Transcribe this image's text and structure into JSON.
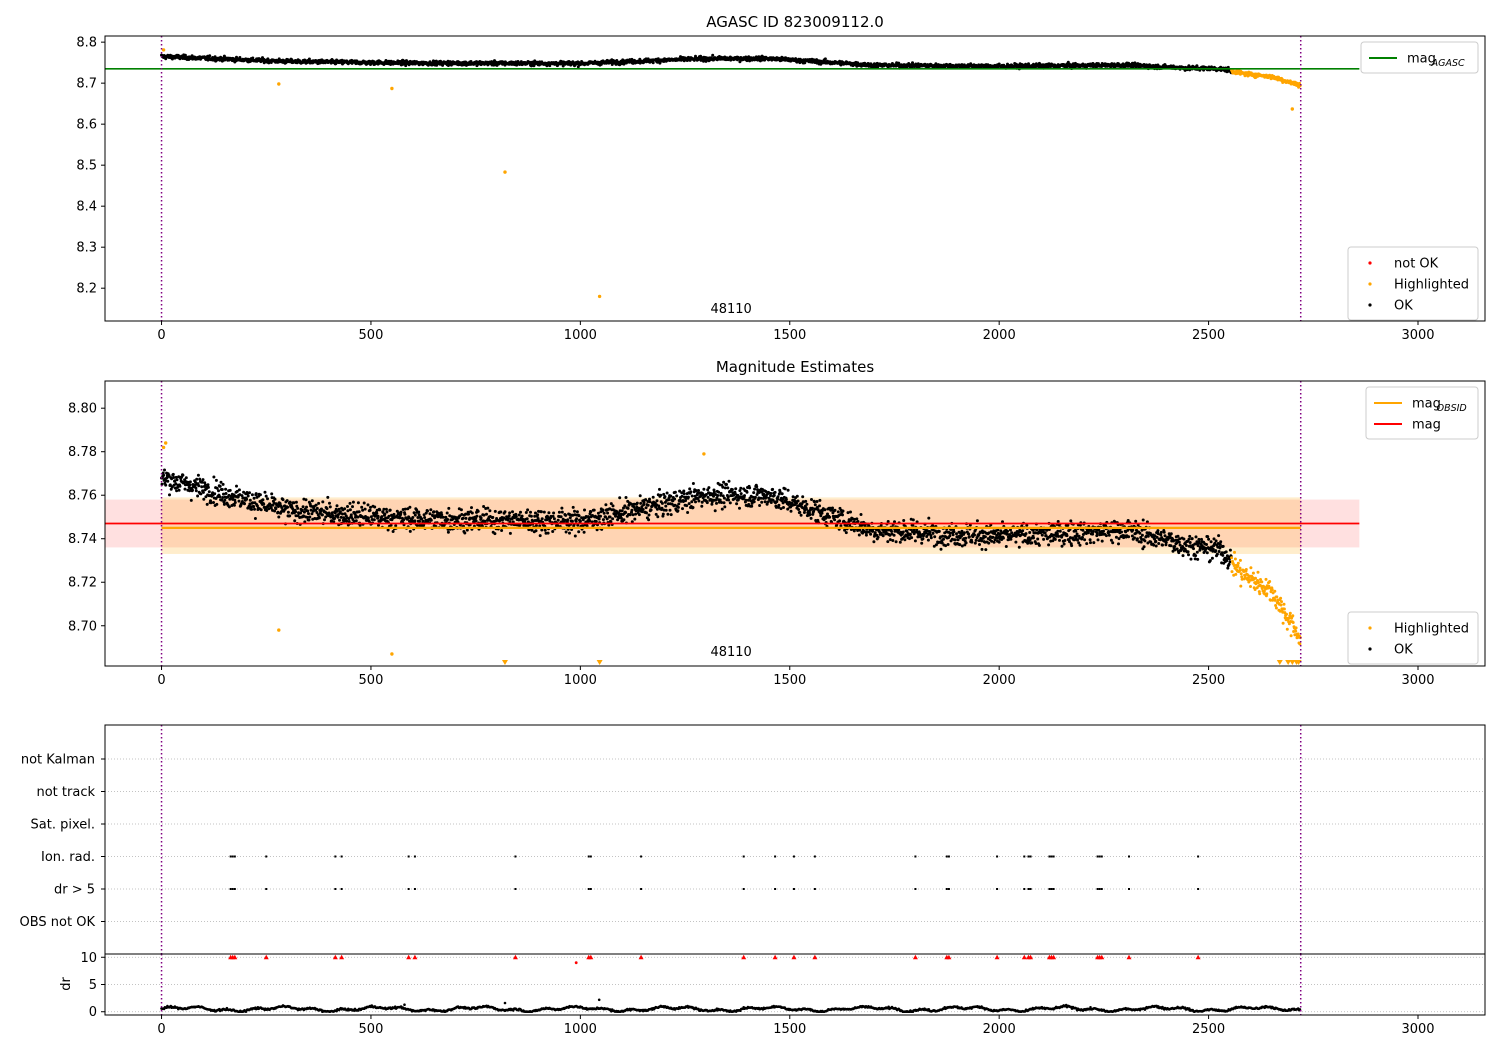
{
  "chart_data": [
    {
      "type": "scatter",
      "title": "AGASC ID 823009112.0",
      "xlim": [
        -135,
        3160
      ],
      "ylim": [
        8.12,
        8.815
      ],
      "xticks": [
        0,
        500,
        1000,
        1500,
        2000,
        2500,
        3000
      ],
      "yticks": [
        8.2,
        8.3,
        8.4,
        8.5,
        8.6,
        8.7,
        8.8
      ],
      "grid": false,
      "vlines": [
        0,
        2720
      ],
      "annotation": {
        "text": "48110",
        "x": 1360,
        "y": 8.14
      },
      "hline": {
        "name": "mag",
        "subscript": "AGASC",
        "y": 8.735,
        "x0": -135,
        "x1": 2860,
        "color": "#008000"
      },
      "series_meta": {
        "ok": {
          "name": "OK",
          "color": "#000000"
        },
        "highlighted": {
          "name": "Highlighted",
          "color": "#ffa500"
        },
        "not_ok": {
          "name": "not OK",
          "color": "#ff0000"
        }
      },
      "trend": {
        "n": 2720,
        "knots": [
          [
            0,
            8.765
          ],
          [
            300,
            8.753
          ],
          [
            600,
            8.749
          ],
          [
            1000,
            8.748
          ],
          [
            1300,
            8.76
          ],
          [
            1450,
            8.76
          ],
          [
            1700,
            8.744
          ],
          [
            2000,
            8.741
          ],
          [
            2300,
            8.744
          ],
          [
            2450,
            8.737
          ],
          [
            2530,
            8.735
          ],
          [
            2580,
            8.724
          ],
          [
            2650,
            8.716
          ],
          [
            2720,
            8.694
          ]
        ],
        "scatter": 0.0065,
        "highlight_from": 2555
      },
      "outliers": [
        [
          5,
          8.781
        ],
        [
          280,
          8.698
        ],
        [
          550,
          8.687
        ],
        [
          820,
          8.483
        ],
        [
          1046,
          8.18
        ],
        [
          2700,
          8.637
        ]
      ],
      "legends": [
        {
          "position": "upper right",
          "entries": [
            {
              "label": "mag",
              "subscript": "AGASC",
              "kind": "line",
              "color": "#008000"
            }
          ]
        },
        {
          "position": "lower right",
          "entries": [
            {
              "label": "not OK",
              "kind": "marker",
              "color": "#ff0000"
            },
            {
              "label": "Highlighted",
              "kind": "marker",
              "color": "#ffa500"
            },
            {
              "label": "OK",
              "kind": "marker",
              "color": "#000000"
            }
          ]
        }
      ]
    },
    {
      "type": "scatter",
      "title": "Magnitude Estimates",
      "xlim": [
        -135,
        3160
      ],
      "ylim": [
        8.6815,
        8.8125
      ],
      "xticks": [
        0,
        500,
        1000,
        1500,
        2000,
        2500,
        3000
      ],
      "yticks": [
        8.7,
        8.72,
        8.74,
        8.76,
        8.78,
        8.8
      ],
      "ytick_labels": [
        "8.70",
        "8.72",
        "8.74",
        "8.76",
        "8.78",
        "8.80"
      ],
      "grid": false,
      "vlines": [
        0,
        2720
      ],
      "annotation": {
        "text": "48110",
        "x": 1360,
        "y": 8.686
      },
      "mag_band": {
        "y": 8.747,
        "lo": 8.736,
        "hi": 8.758,
        "x0": -135,
        "x1": 2860,
        "color": "#ff0000"
      },
      "obsid_band": {
        "y": 8.745,
        "lo": 8.733,
        "hi": 8.759,
        "x0": 0,
        "x1": 2720,
        "color": "#ffa500"
      },
      "trend": {
        "n": 2720,
        "knots": [
          [
            0,
            8.768
          ],
          [
            300,
            8.753
          ],
          [
            600,
            8.749
          ],
          [
            1000,
            8.748
          ],
          [
            1300,
            8.76
          ],
          [
            1450,
            8.76
          ],
          [
            1700,
            8.744
          ],
          [
            2000,
            8.741
          ],
          [
            2300,
            8.744
          ],
          [
            2450,
            8.737
          ],
          [
            2530,
            8.735
          ],
          [
            2580,
            8.724
          ],
          [
            2650,
            8.716
          ],
          [
            2720,
            8.694
          ]
        ],
        "scatter": 0.0068,
        "highlight_from": 2555
      },
      "outliers": [
        [
          5,
          8.782
        ],
        [
          10,
          8.784
        ],
        [
          280,
          8.698
        ],
        [
          550,
          8.687
        ],
        [
          1295,
          8.779
        ]
      ],
      "clipped_low": [
        820,
        1046,
        2670,
        2690,
        2700,
        2710,
        2715
      ],
      "legends": [
        {
          "position": "upper right",
          "entries": [
            {
              "label": "mag",
              "subscript": "OBSID",
              "kind": "line",
              "color": "#ffa500"
            },
            {
              "label": "mag",
              "kind": "line",
              "color": "#ff0000"
            }
          ]
        },
        {
          "position": "lower right",
          "entries": [
            {
              "label": "Highlighted",
              "kind": "marker",
              "color": "#ffa500"
            },
            {
              "label": "OK",
              "kind": "marker",
              "color": "#000000"
            }
          ]
        }
      ]
    },
    {
      "type": "scatter",
      "title": "",
      "xlim": [
        -135,
        3160
      ],
      "categories": [
        "not Kalman",
        "not track",
        "Sat. pixel.",
        "Ion. rad.",
        "dr > 5",
        "OBS not OK"
      ],
      "grid": true,
      "vlines": [
        0,
        2720
      ],
      "flag_times": [
        165,
        170,
        175,
        250,
        415,
        430,
        590,
        605,
        845,
        1020,
        1025,
        1145,
        1390,
        1465,
        1510,
        1560,
        1800,
        1875,
        1880,
        1995,
        2060,
        2070,
        2075,
        2120,
        2125,
        2130,
        2235,
        2240,
        2245,
        2310,
        2475
      ],
      "flag_rows": [
        "Ion. rad.",
        "dr > 5"
      ]
    },
    {
      "type": "scatter",
      "title": "",
      "ylabel": "dr",
      "xlim": [
        -135,
        3160
      ],
      "ylim": [
        -0.6,
        10.6
      ],
      "yticks": [
        0,
        5,
        10
      ],
      "xticks": [
        0,
        500,
        1000,
        1500,
        2000,
        2500,
        3000
      ],
      "grid": true,
      "vlines": [
        0,
        2720
      ],
      "dr_level": 0.5,
      "dr_spikes": [
        [
          820,
          1.6
        ],
        [
          1045,
          2.2
        ],
        [
          580,
          1.3
        ]
      ],
      "cap_value": 10,
      "cap_color": "#ff0000",
      "cap_extra": [
        [
          990,
          9.0
        ]
      ]
    }
  ]
}
